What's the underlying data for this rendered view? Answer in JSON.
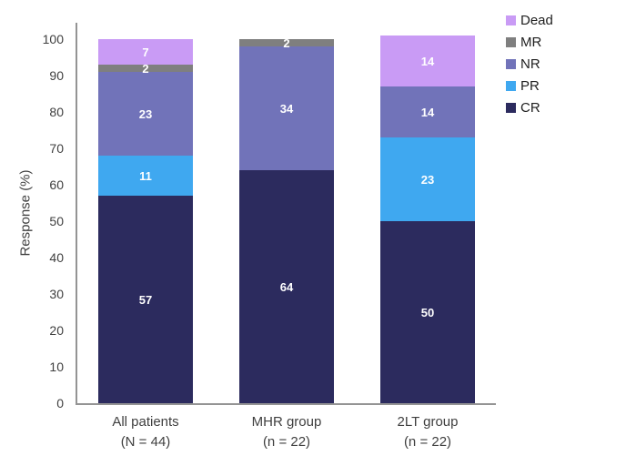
{
  "chart_data": {
    "type": "bar",
    "stacked": true,
    "title": "",
    "xlabel": "",
    "ylabel": "Response (%)",
    "ylim": [
      0,
      100
    ],
    "yticks": [
      0,
      10,
      20,
      30,
      40,
      50,
      60,
      70,
      80,
      90,
      100
    ],
    "grid": false,
    "categories": [
      {
        "label": "All patients",
        "sublabel": "(N = 44)"
      },
      {
        "label": "MHR group",
        "sublabel": "(n = 22)"
      },
      {
        "label": "2LT group",
        "sublabel": "(n = 22)"
      }
    ],
    "series": [
      {
        "name": "CR",
        "color": "#2c2b5e",
        "values": [
          57,
          64,
          50
        ]
      },
      {
        "name": "PR",
        "color": "#3fa8f0",
        "values": [
          11,
          0,
          23
        ]
      },
      {
        "name": "NR",
        "color": "#7173b9",
        "values": [
          23,
          34,
          14
        ]
      },
      {
        "name": "MR",
        "color": "#7f7f7f",
        "values": [
          2,
          2,
          0
        ]
      },
      {
        "name": "Dead",
        "color": "#c99bf5",
        "values": [
          7,
          0,
          14
        ]
      }
    ],
    "legend": {
      "position": "top-right",
      "order": [
        "Dead",
        "MR",
        "NR",
        "PR",
        "CR"
      ]
    },
    "value_label_color": "#ffffff",
    "axis_color": "#949494",
    "tick_label_color": "#3f3f3f"
  }
}
